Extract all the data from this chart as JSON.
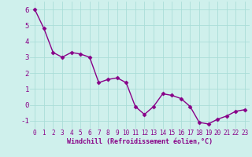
{
  "x": [
    0,
    1,
    2,
    3,
    4,
    5,
    6,
    7,
    8,
    9,
    10,
    11,
    12,
    13,
    14,
    15,
    16,
    17,
    18,
    19,
    20,
    21,
    22,
    23
  ],
  "y": [
    6.0,
    4.8,
    3.3,
    3.0,
    3.3,
    3.2,
    3.0,
    1.4,
    1.6,
    1.7,
    1.4,
    -0.1,
    -0.6,
    -0.1,
    0.7,
    0.6,
    0.4,
    -0.1,
    -1.1,
    -1.2,
    -0.9,
    -0.7,
    -0.4,
    -0.3
  ],
  "line_color": "#880088",
  "marker": "D",
  "marker_size": 2.5,
  "linewidth": 1.0,
  "bg_color": "#cff0ec",
  "grid_color": "#aaddd8",
  "xlabel": "Windchill (Refroidissement éolien,°C)",
  "xlabel_color": "#880088",
  "tick_color": "#880088",
  "ylim": [
    -1.5,
    6.5
  ],
  "xlim": [
    -0.5,
    23.5
  ],
  "yticks": [
    -1,
    0,
    1,
    2,
    3,
    4,
    5,
    6
  ],
  "xticks": [
    0,
    1,
    2,
    3,
    4,
    5,
    6,
    7,
    8,
    9,
    10,
    11,
    12,
    13,
    14,
    15,
    16,
    17,
    18,
    19,
    20,
    21,
    22,
    23
  ],
  "tick_fontsize": 5.5,
  "xlabel_fontsize": 6.0,
  "ytick_fontsize": 6.5
}
